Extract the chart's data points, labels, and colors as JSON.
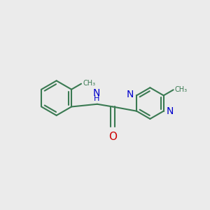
{
  "bg": "#ebebeb",
  "bond_color": "#3a7a52",
  "n_color": "#0000cc",
  "o_color": "#cc0000",
  "lw": 1.5,
  "figsize": [
    3.0,
    3.0
  ],
  "dpi": 100,
  "xlim": [
    -1,
    11
  ],
  "ylim": [
    -1,
    11
  ]
}
